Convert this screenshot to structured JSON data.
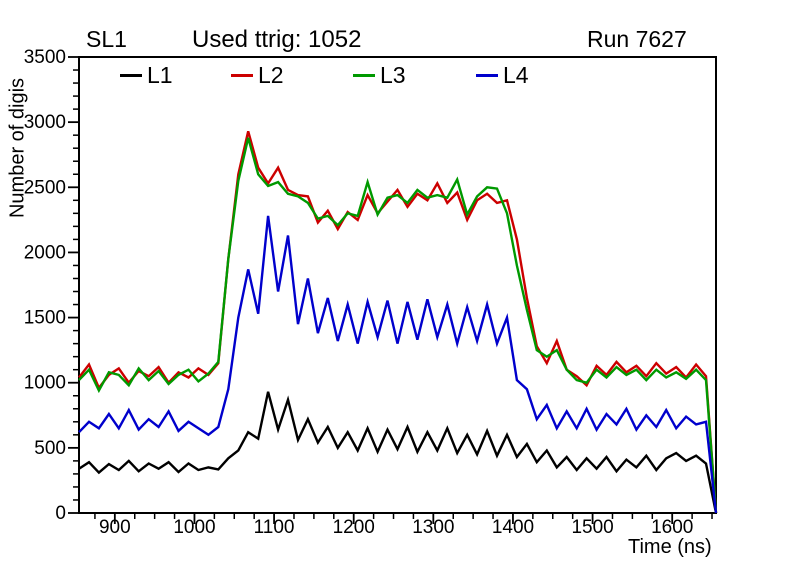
{
  "header": {
    "left_label": "SL1",
    "center_label": "Used ttrig: 1052",
    "right_label": "Run 7627"
  },
  "axes": {
    "y_title": "Number of digis",
    "x_title": "Time (ns)"
  },
  "colors": {
    "background": "#ffffff",
    "frame": "#000000",
    "l1": "#000000",
    "l2": "#cc0000",
    "l3": "#009900",
    "l4": "#0000cc"
  },
  "chart_data": {
    "type": "line",
    "title": "Used ttrig: 1052",
    "subtitle_left": "SL1",
    "subtitle_right": "Run 7627",
    "xlabel": "Time (ns)",
    "ylabel": "Number of digis",
    "xlim": [
      855,
      1655
    ],
    "ylim": [
      0,
      3500
    ],
    "grid": false,
    "legend_position": "top-inside",
    "x_major_ticks": [
      900,
      1000,
      1100,
      1200,
      1300,
      1400,
      1500,
      1600
    ],
    "x_minor_step": 25,
    "y_major_ticks": [
      0,
      500,
      1000,
      1500,
      2000,
      2500,
      3000,
      3500
    ],
    "y_minor_step": 100,
    "x": [
      855,
      867.5,
      880,
      892.5,
      905,
      917.5,
      930,
      942.5,
      955,
      967.5,
      980,
      992.5,
      1005,
      1017.5,
      1030,
      1042.5,
      1055,
      1067.5,
      1080,
      1092.5,
      1105,
      1117.5,
      1130,
      1142.5,
      1155,
      1167.5,
      1180,
      1192.5,
      1205,
      1217.5,
      1230,
      1242.5,
      1255,
      1267.5,
      1280,
      1292.5,
      1305,
      1317.5,
      1330,
      1342.5,
      1355,
      1367.5,
      1380,
      1392.5,
      1405,
      1417.5,
      1430,
      1442.5,
      1455,
      1467.5,
      1480,
      1492.5,
      1505,
      1517.5,
      1530,
      1542.5,
      1555,
      1567.5,
      1580,
      1592.5,
      1605,
      1617.5,
      1630,
      1642.5,
      1655
    ],
    "series": [
      {
        "name": "L1",
        "color": "#000000",
        "values": [
          340,
          390,
          310,
          375,
          330,
          400,
          320,
          380,
          340,
          390,
          315,
          380,
          330,
          350,
          335,
          420,
          480,
          620,
          570,
          930,
          640,
          870,
          560,
          720,
          540,
          660,
          500,
          620,
          480,
          650,
          470,
          640,
          490,
          660,
          470,
          620,
          480,
          650,
          460,
          600,
          450,
          630,
          440,
          600,
          430,
          530,
          390,
          480,
          350,
          430,
          330,
          420,
          340,
          430,
          320,
          410,
          350,
          440,
          330,
          420,
          460,
          400,
          440,
          380,
          0
        ]
      },
      {
        "name": "L2",
        "color": "#cc0000",
        "values": [
          1040,
          1140,
          960,
          1060,
          1110,
          1000,
          1090,
          1050,
          1120,
          1000,
          1080,
          1040,
          1110,
          1060,
          1150,
          1950,
          2600,
          2930,
          2650,
          2530,
          2650,
          2480,
          2440,
          2430,
          2230,
          2320,
          2180,
          2310,
          2250,
          2440,
          2300,
          2390,
          2480,
          2350,
          2450,
          2400,
          2530,
          2380,
          2460,
          2250,
          2400,
          2450,
          2380,
          2400,
          2100,
          1650,
          1280,
          1150,
          1320,
          1100,
          1050,
          980,
          1130,
          1060,
          1160,
          1080,
          1130,
          1050,
          1150,
          1070,
          1120,
          1040,
          1140,
          1050,
          0
        ]
      },
      {
        "name": "L3",
        "color": "#009900",
        "values": [
          1020,
          1100,
          940,
          1080,
          1060,
          980,
          1110,
          1020,
          1090,
          990,
          1060,
          1100,
          1010,
          1070,
          1160,
          1950,
          2550,
          2880,
          2600,
          2510,
          2540,
          2450,
          2430,
          2380,
          2260,
          2280,
          2210,
          2300,
          2280,
          2540,
          2290,
          2420,
          2440,
          2380,
          2480,
          2420,
          2440,
          2420,
          2560,
          2290,
          2430,
          2500,
          2490,
          2300,
          1900,
          1560,
          1250,
          1200,
          1250,
          1100,
          1020,
          1000,
          1100,
          1040,
          1120,
          1060,
          1100,
          1020,
          1100,
          1040,
          1080,
          1030,
          1100,
          1020,
          0
        ]
      },
      {
        "name": "L4",
        "color": "#0000cc",
        "values": [
          620,
          700,
          650,
          760,
          650,
          790,
          640,
          720,
          660,
          780,
          630,
          700,
          650,
          600,
          660,
          950,
          1500,
          1870,
          1530,
          2280,
          1700,
          2130,
          1450,
          1800,
          1380,
          1650,
          1320,
          1600,
          1300,
          1620,
          1350,
          1630,
          1300,
          1620,
          1330,
          1640,
          1350,
          1600,
          1300,
          1580,
          1320,
          1600,
          1300,
          1500,
          1020,
          950,
          720,
          830,
          650,
          780,
          650,
          800,
          640,
          760,
          680,
          800,
          640,
          750,
          660,
          790,
          650,
          740,
          680,
          700,
          0
        ]
      }
    ]
  }
}
